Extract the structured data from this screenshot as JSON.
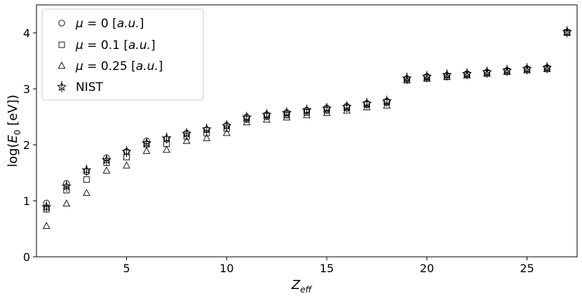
{
  "chart_data": {
    "type": "scatter",
    "xlabel": "Z_eff",
    "xlabel_main": "Z",
    "xlabel_sub": "eff",
    "ylabel": "log(E_0 [eV])",
    "ylabel_pre": "log(",
    "ylabel_E": "E",
    "ylabel_sub": "0",
    "ylabel_post": " [eV])",
    "xlim": [
      0.5,
      27.5
    ],
    "ylim": [
      0,
      4.5
    ],
    "xticks": [
      5,
      10,
      15,
      20,
      25
    ],
    "yticks": [
      0,
      1,
      2,
      3,
      4
    ],
    "grid": false,
    "legend_position": "top-left",
    "x": [
      1,
      2,
      3,
      4,
      5,
      6,
      7,
      8,
      9,
      10,
      11,
      12,
      13,
      14,
      15,
      16,
      17,
      18,
      19,
      20,
      21,
      22,
      23,
      24,
      25,
      26,
      27
    ],
    "series": [
      {
        "name": "μ = 0 [a.u.]",
        "legend_symbol": "μ",
        "legend_eq": " = 0 [",
        "legend_unit": "a.u.",
        "legend_close": "]",
        "marker": "circle",
        "values": [
          0.96,
          1.31,
          1.52,
          1.77,
          1.88,
          2.07,
          2.1,
          2.21,
          2.27,
          2.35,
          2.5,
          2.54,
          2.58,
          2.62,
          2.66,
          2.69,
          2.74,
          2.78,
          3.18,
          3.22,
          3.24,
          3.27,
          3.3,
          3.33,
          3.36,
          3.38,
          4.01
        ]
      },
      {
        "name": "μ = 0.1 [a.u.]",
        "legend_symbol": "μ",
        "legend_eq": " = 0.1 [",
        "legend_unit": "a.u.",
        "legend_close": "]",
        "marker": "square",
        "values": [
          0.85,
          1.19,
          1.38,
          1.68,
          1.78,
          2.01,
          2.02,
          2.15,
          2.21,
          2.29,
          2.46,
          2.51,
          2.53,
          2.58,
          2.62,
          2.66,
          2.72,
          2.76,
          3.16,
          3.2,
          3.22,
          3.25,
          3.28,
          3.31,
          3.34,
          3.36,
          4.01
        ]
      },
      {
        "name": "μ = 0.25 [a.u.]",
        "legend_symbol": "μ",
        "legend_eq": " = 0.25 [",
        "legend_unit": "a.u.",
        "legend_close": "]",
        "marker": "triangle",
        "values": [
          0.55,
          0.95,
          1.14,
          1.54,
          1.63,
          1.89,
          1.91,
          2.07,
          2.12,
          2.21,
          2.4,
          2.45,
          2.49,
          2.53,
          2.57,
          2.61,
          2.67,
          2.7,
          3.15,
          3.18,
          3.21,
          3.24,
          3.27,
          3.3,
          3.33,
          3.35,
          4.0
        ]
      },
      {
        "name": "NIST",
        "marker": "star-errorbar",
        "values": [
          0.89,
          1.26,
          1.55,
          1.73,
          1.88,
          2.03,
          2.12,
          2.2,
          2.28,
          2.34,
          2.49,
          2.54,
          2.57,
          2.62,
          2.65,
          2.68,
          2.74,
          2.78,
          3.19,
          3.22,
          3.25,
          3.27,
          3.3,
          3.33,
          3.36,
          3.38,
          4.02
        ]
      }
    ]
  }
}
